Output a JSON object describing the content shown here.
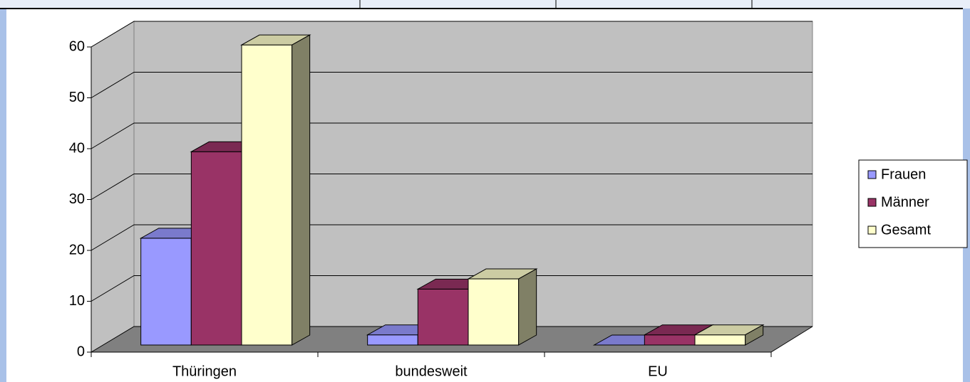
{
  "chart_data": {
    "type": "bar",
    "categories": [
      "Thüringen",
      "bundesweit",
      "EU"
    ],
    "series": [
      {
        "name": "Frauen",
        "color": "#9999ff",
        "values": [
          21,
          2,
          0
        ]
      },
      {
        "name": "Männer",
        "color": "#993366",
        "values": [
          38,
          11,
          2
        ]
      },
      {
        "name": "Gesamt",
        "color": "#ffffcc",
        "values": [
          59,
          13,
          2
        ]
      }
    ],
    "ylim": [
      0,
      60
    ],
    "yticks": [
      0,
      10,
      20,
      30,
      40,
      50,
      60
    ],
    "grid": true,
    "legend": "right"
  }
}
